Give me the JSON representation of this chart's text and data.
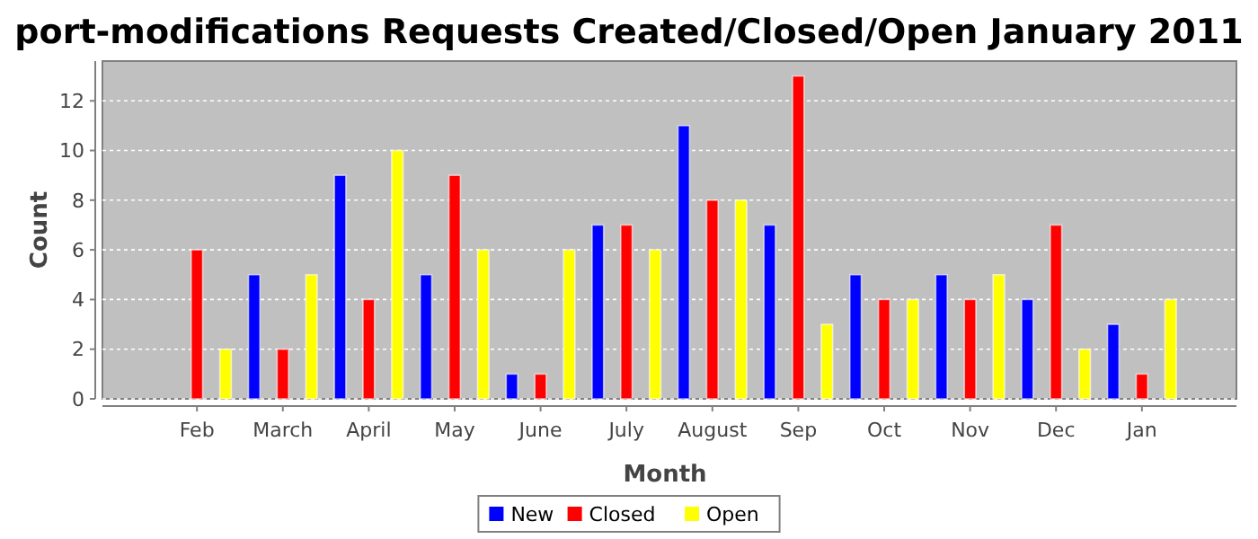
{
  "chart_data": {
    "type": "bar",
    "title": "port-modifications Requests Created/Closed/Open January 2011",
    "xlabel": "Month",
    "ylabel": "Count",
    "categories": [
      "Feb",
      "March",
      "April",
      "May",
      "June",
      "July",
      "August",
      "Sep",
      "Oct",
      "Nov",
      "Dec",
      "Jan"
    ],
    "series": [
      {
        "name": "New",
        "color": "#0000ff",
        "values": [
          0,
          5,
          9,
          5,
          1,
          7,
          11,
          7,
          5,
          5,
          4,
          3
        ]
      },
      {
        "name": "Closed",
        "color": "#ff0000",
        "values": [
          6,
          2,
          4,
          9,
          1,
          7,
          8,
          13,
          4,
          4,
          7,
          1
        ]
      },
      {
        "name": "Open",
        "color": "#ffff00",
        "values": [
          2,
          5,
          10,
          6,
          6,
          6,
          8,
          3,
          4,
          5,
          2,
          4
        ]
      }
    ],
    "ylim": [
      0,
      13.6
    ],
    "yticks": [
      0,
      2,
      4,
      6,
      8,
      10,
      12
    ],
    "grid": "y",
    "legend": "bottom"
  }
}
